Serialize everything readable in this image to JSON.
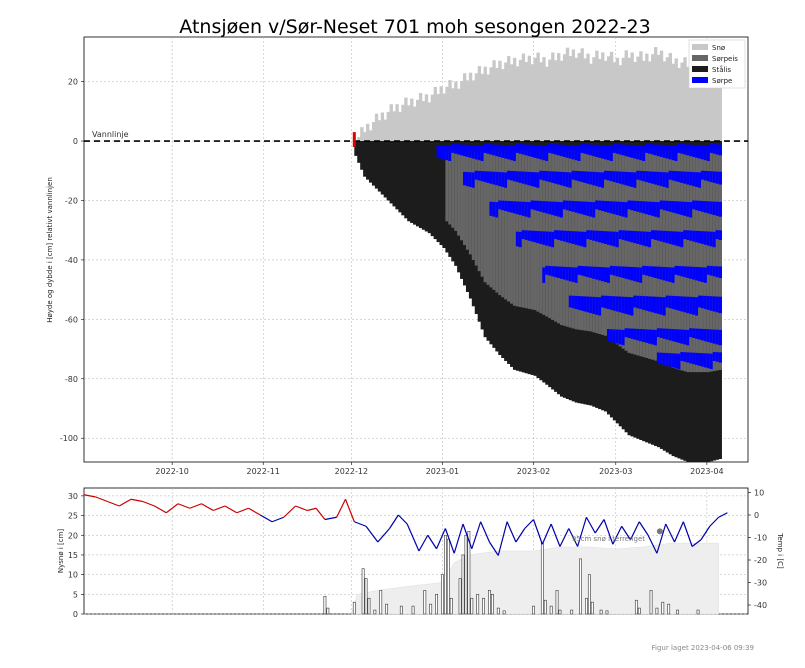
{
  "chart_data": [
    {
      "type": "bar",
      "title": "Atnsjøen v/Sør-Neset 701 moh sesongen 2022-23",
      "xlabel": "",
      "ylabel": "Høyde og dybde i [cm] relativt vannlinjen",
      "x_ticks": [
        "2022-10",
        "2022-11",
        "2022-12",
        "2023-01",
        "2023-02",
        "2023-03",
        "2023-04"
      ],
      "y_ticks": [
        20,
        0,
        -20,
        -40,
        -60,
        -80,
        -100
      ],
      "ylim": [
        -108,
        35
      ],
      "grid": true,
      "legend_position": "top-right",
      "waterline_label": "Vannlinje",
      "colors": {
        "sno": "#c8c8c8",
        "sorpeis": "#666666",
        "staalis": "#1c1c1c",
        "sorpe": "#0000ff",
        "start_marker": "#dd0000"
      },
      "series": [
        {
          "name": "Snø",
          "color": "#c8c8c8"
        },
        {
          "name": "Sørpeis",
          "color": "#666666"
        },
        {
          "name": "Stålis",
          "color": "#1c1c1c"
        },
        {
          "name": "Sørpe",
          "color": "#0000ff"
        }
      ],
      "profile": {
        "dates": [
          "2022-12-02",
          "2022-12-05",
          "2022-12-10",
          "2022-12-15",
          "2022-12-20",
          "2022-12-27",
          "2023-01-01",
          "2023-01-05",
          "2023-01-10",
          "2023-01-15",
          "2023-01-20",
          "2023-01-25",
          "2023-02-01",
          "2023-02-05",
          "2023-02-10",
          "2023-02-15",
          "2023-02-20",
          "2023-02-25",
          "2023-03-01",
          "2023-03-05",
          "2023-03-10",
          "2023-03-15",
          "2023-03-20",
          "2023-03-25",
          "2023-04-01",
          "2023-04-05"
        ],
        "snow_top": [
          0,
          4,
          8,
          11,
          13,
          15,
          18,
          19,
          22,
          24,
          26,
          27,
          28,
          27,
          29,
          30,
          28,
          29,
          27,
          29,
          28,
          30,
          27,
          26,
          25,
          21
        ],
        "ice_bottom": [
          -5,
          -12,
          -17,
          -22,
          -27,
          -31,
          -36,
          -42,
          -53,
          -66,
          -72,
          -77,
          -79,
          -82,
          -86,
          -88,
          -89,
          -91,
          -95,
          -99,
          -101,
          -103,
          -106,
          -108,
          -108,
          -107
        ],
        "slush_layers": [
          [
            -1,
            -4
          ],
          [
            -10,
            -13
          ],
          [
            -20,
            -23
          ],
          [
            -30,
            -33
          ],
          [
            -42,
            -45
          ],
          [
            -52,
            -56
          ],
          [
            -63,
            -66
          ],
          [
            -71,
            -74
          ]
        ]
      }
    },
    {
      "type": "bar",
      "ylabel": "Nysnø i [cm]",
      "y2label": "Temp i [C]",
      "y_ticks": [
        0,
        5,
        10,
        15,
        20,
        25,
        30
      ],
      "y2_ticks": [
        10,
        0,
        -10,
        -20,
        -30,
        -40
      ],
      "ylim": [
        0,
        32
      ],
      "y2lim": [
        -44,
        12
      ],
      "annotation": "95cm snø i terrenget",
      "colors": {
        "temp_warm": "#cc0000",
        "temp_cold": "#0000aa",
        "snow_depth_fill": "#eeeeee",
        "new_snow_bar": "#999999"
      },
      "new_snow": [
        {
          "date": "2022-11-22",
          "value": 4.5
        },
        {
          "date": "2022-11-23",
          "value": 1.5
        },
        {
          "date": "2022-12-02",
          "value": 3
        },
        {
          "date": "2022-12-05",
          "value": 11.5
        },
        {
          "date": "2022-12-06",
          "value": 9
        },
        {
          "date": "2022-12-07",
          "value": 4
        },
        {
          "date": "2022-12-09",
          "value": 1
        },
        {
          "date": "2022-12-11",
          "value": 6
        },
        {
          "date": "2022-12-13",
          "value": 2.5
        },
        {
          "date": "2022-12-18",
          "value": 2
        },
        {
          "date": "2022-12-22",
          "value": 2
        },
        {
          "date": "2022-12-26",
          "value": 6
        },
        {
          "date": "2022-12-28",
          "value": 2.5
        },
        {
          "date": "2022-12-30",
          "value": 5
        },
        {
          "date": "2023-01-01",
          "value": 10
        },
        {
          "date": "2023-01-02",
          "value": 20
        },
        {
          "date": "2023-01-03",
          "value": 19
        },
        {
          "date": "2023-01-04",
          "value": 4
        },
        {
          "date": "2023-01-07",
          "value": 9
        },
        {
          "date": "2023-01-08",
          "value": 15
        },
        {
          "date": "2023-01-09",
          "value": 20
        },
        {
          "date": "2023-01-10",
          "value": 21
        },
        {
          "date": "2023-01-11",
          "value": 4
        },
        {
          "date": "2023-01-13",
          "value": 5
        },
        {
          "date": "2023-01-15",
          "value": 4
        },
        {
          "date": "2023-01-17",
          "value": 6
        },
        {
          "date": "2023-01-18",
          "value": 5
        },
        {
          "date": "2023-01-20",
          "value": 1.5
        },
        {
          "date": "2023-01-22",
          "value": 0.8
        },
        {
          "date": "2023-02-01",
          "value": 2
        },
        {
          "date": "2023-02-04",
          "value": 18
        },
        {
          "date": "2023-02-05",
          "value": 3.5
        },
        {
          "date": "2023-02-07",
          "value": 2
        },
        {
          "date": "2023-02-09",
          "value": 6
        },
        {
          "date": "2023-02-10",
          "value": 1
        },
        {
          "date": "2023-02-14",
          "value": 1
        },
        {
          "date": "2023-02-17",
          "value": 14
        },
        {
          "date": "2023-02-19",
          "value": 4
        },
        {
          "date": "2023-02-20",
          "value": 10
        },
        {
          "date": "2023-02-21",
          "value": 3
        },
        {
          "date": "2023-02-24",
          "value": 1
        },
        {
          "date": "2023-02-26",
          "value": 0.8
        },
        {
          "date": "2023-03-08",
          "value": 3.5
        },
        {
          "date": "2023-03-09",
          "value": 1.5
        },
        {
          "date": "2023-03-13",
          "value": 6
        },
        {
          "date": "2023-03-15",
          "value": 1.5
        },
        {
          "date": "2023-03-17",
          "value": 3
        },
        {
          "date": "2023-03-19",
          "value": 2.5
        },
        {
          "date": "2023-03-22",
          "value": 1
        },
        {
          "date": "2023-03-29",
          "value": 1
        }
      ],
      "snow_depth": [
        {
          "date": "2022-12-01",
          "value": 0
        },
        {
          "date": "2022-12-03",
          "value": 5
        },
        {
          "date": "2022-12-10",
          "value": 6
        },
        {
          "date": "2022-12-20",
          "value": 7
        },
        {
          "date": "2023-01-01",
          "value": 8
        },
        {
          "date": "2023-01-05",
          "value": 13
        },
        {
          "date": "2023-01-10",
          "value": 15
        },
        {
          "date": "2023-01-20",
          "value": 16
        },
        {
          "date": "2023-02-01",
          "value": 16
        },
        {
          "date": "2023-02-10",
          "value": 17
        },
        {
          "date": "2023-02-20",
          "value": 17
        },
        {
          "date": "2023-03-01",
          "value": 16.5
        },
        {
          "date": "2023-03-10",
          "value": 17
        },
        {
          "date": "2023-03-20",
          "value": 18
        },
        {
          "date": "2023-03-30",
          "value": 18
        },
        {
          "date": "2023-04-05",
          "value": 18
        }
      ],
      "temperature": [
        {
          "date": "2022-09-01",
          "value": 9
        },
        {
          "date": "2022-09-05",
          "value": 8
        },
        {
          "date": "2022-09-09",
          "value": 6
        },
        {
          "date": "2022-09-13",
          "value": 4
        },
        {
          "date": "2022-09-17",
          "value": 7
        },
        {
          "date": "2022-09-21",
          "value": 6
        },
        {
          "date": "2022-09-25",
          "value": 4
        },
        {
          "date": "2022-09-29",
          "value": 1
        },
        {
          "date": "2022-10-03",
          "value": 5
        },
        {
          "date": "2022-10-07",
          "value": 3
        },
        {
          "date": "2022-10-11",
          "value": 5
        },
        {
          "date": "2022-10-15",
          "value": 2
        },
        {
          "date": "2022-10-19",
          "value": 4
        },
        {
          "date": "2022-10-23",
          "value": 1
        },
        {
          "date": "2022-10-27",
          "value": 3
        },
        {
          "date": "2022-10-31",
          "value": 0
        },
        {
          "date": "2022-11-04",
          "value": -3
        },
        {
          "date": "2022-11-08",
          "value": -1
        },
        {
          "date": "2022-11-12",
          "value": 4
        },
        {
          "date": "2022-11-16",
          "value": 2
        },
        {
          "date": "2022-11-19",
          "value": 3
        },
        {
          "date": "2022-11-22",
          "value": -2
        },
        {
          "date": "2022-11-26",
          "value": -1
        },
        {
          "date": "2022-11-29",
          "value": 7
        },
        {
          "date": "2022-12-02",
          "value": -3
        },
        {
          "date": "2022-12-06",
          "value": -5
        },
        {
          "date": "2022-12-10",
          "value": -12
        },
        {
          "date": "2022-12-14",
          "value": -6
        },
        {
          "date": "2022-12-17",
          "value": 0
        },
        {
          "date": "2022-12-20",
          "value": -4
        },
        {
          "date": "2022-12-24",
          "value": -16
        },
        {
          "date": "2022-12-27",
          "value": -9
        },
        {
          "date": "2022-12-30",
          "value": -15
        },
        {
          "date": "2023-01-02",
          "value": -6
        },
        {
          "date": "2023-01-05",
          "value": -17
        },
        {
          "date": "2023-01-08",
          "value": -4
        },
        {
          "date": "2023-01-11",
          "value": -15
        },
        {
          "date": "2023-01-14",
          "value": -3
        },
        {
          "date": "2023-01-17",
          "value": -12
        },
        {
          "date": "2023-01-20",
          "value": -18
        },
        {
          "date": "2023-01-23",
          "value": -3
        },
        {
          "date": "2023-01-26",
          "value": -12
        },
        {
          "date": "2023-01-29",
          "value": -6
        },
        {
          "date": "2023-02-01",
          "value": -2
        },
        {
          "date": "2023-02-04",
          "value": -13
        },
        {
          "date": "2023-02-07",
          "value": -4
        },
        {
          "date": "2023-02-10",
          "value": -14
        },
        {
          "date": "2023-02-13",
          "value": -6
        },
        {
          "date": "2023-02-16",
          "value": -14
        },
        {
          "date": "2023-02-19",
          "value": -1
        },
        {
          "date": "2023-02-22",
          "value": -8
        },
        {
          "date": "2023-02-25",
          "value": -2
        },
        {
          "date": "2023-02-28",
          "value": -13
        },
        {
          "date": "2023-03-03",
          "value": -5
        },
        {
          "date": "2023-03-06",
          "value": -11
        },
        {
          "date": "2023-03-09",
          "value": -3
        },
        {
          "date": "2023-03-12",
          "value": -9
        },
        {
          "date": "2023-03-15",
          "value": -17
        },
        {
          "date": "2023-03-18",
          "value": -4
        },
        {
          "date": "2023-03-21",
          "value": -12
        },
        {
          "date": "2023-03-24",
          "value": -3
        },
        {
          "date": "2023-03-27",
          "value": -14
        },
        {
          "date": "2023-03-30",
          "value": -11
        },
        {
          "date": "2023-04-02",
          "value": -5
        },
        {
          "date": "2023-04-05",
          "value": -1
        },
        {
          "date": "2023-04-08",
          "value": 1
        }
      ]
    }
  ],
  "footer": {
    "generated": "Figur laget 2023-04-06 09:39"
  }
}
